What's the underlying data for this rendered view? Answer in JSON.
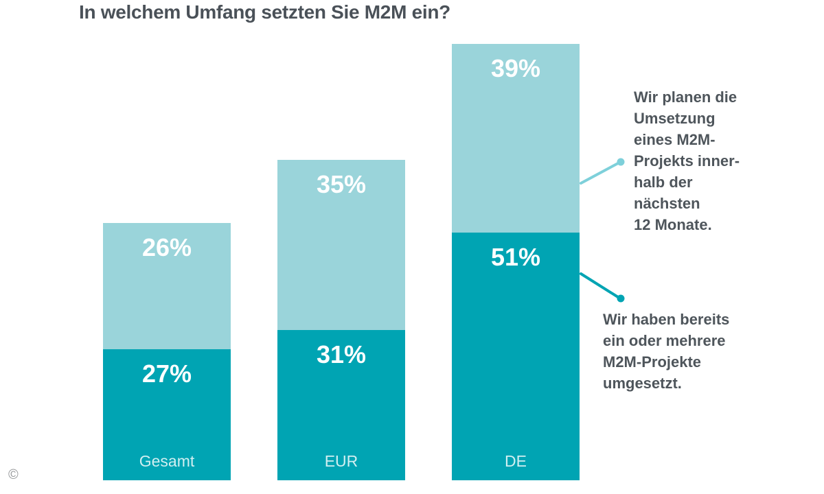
{
  "title": "In welchem Umfang setzten Sie M2M ein?",
  "colors": {
    "background": "#ffffff",
    "light": "#9ad4da",
    "dark": "#00a4b3",
    "light_line": "#7ed0da",
    "dark_line": "#00a4b3",
    "title_text": "#4a5158",
    "annotation_text": "#4e555b",
    "value_label": "#ffffff",
    "category_label": "rgba(255,255,255,0.82)"
  },
  "chart_data": {
    "type": "bar",
    "stacked": true,
    "title": "In welchem Umfang setzten Sie M2M ein?",
    "categories": [
      "Gesamt",
      "EUR",
      "DE"
    ],
    "series": [
      {
        "role": "implemented",
        "name": "Wir haben bereits ein oder mehrere M2M-Projekte umgesetzt.",
        "values": [
          27,
          31,
          51
        ],
        "color": "#00a4b3"
      },
      {
        "role": "planned",
        "name": "Wir planen die Umsetzung eines M2M-Projekts innerhalb der nächsten 12 Monate.",
        "values": [
          26,
          35,
          39
        ],
        "color": "#9ad4da"
      }
    ],
    "unit": "%",
    "ylim": [
      0,
      100
    ],
    "grid": false,
    "legend_position": "right-annotations"
  },
  "annotations": {
    "planned": {
      "text": "Wir planen die\nUmsetzung\neines M2M-\nProjekts inner-\nhalb der\nnächsten\n12 Monate."
    },
    "implemented": {
      "text": "Wir haben bereits\nein oder mehrere\nM2M-Projekte\numgesetzt."
    }
  },
  "footer": {
    "copyright_symbol": "©"
  }
}
